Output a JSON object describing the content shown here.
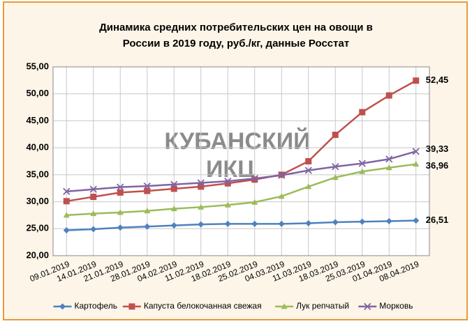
{
  "chart_data": {
    "type": "line",
    "title": [
      "Динамика средних потребительских цен на овощи в",
      "России в 2019 году, руб./кг, данные  Росстат"
    ],
    "watermark": [
      "КУБАНСКИЙ",
      "ИКЦ"
    ],
    "categories": [
      "09.01.2019",
      "14.01.2019",
      "21.01.2019",
      "28.01.2019",
      "04.02.2019",
      "11.02.2019",
      "18.02.2019",
      "25.02.2019",
      "04.03.2019",
      "11.03.2019",
      "18.03.2019",
      "25.03.2019",
      "01.04.2019",
      "08.04.2019"
    ],
    "series": [
      {
        "name": "Картофель",
        "color": "#4f81bd",
        "marker": "diamond",
        "values": [
          24.7,
          24.9,
          25.2,
          25.4,
          25.6,
          25.8,
          25.9,
          25.9,
          25.9,
          26.0,
          26.2,
          26.3,
          26.4,
          26.51
        ],
        "value_labels": [
          null,
          null,
          null,
          null,
          null,
          null,
          null,
          null,
          null,
          null,
          null,
          null,
          null,
          "26,51"
        ]
      },
      {
        "name": "Капуста белокочанная свежая",
        "color": "#c0504d",
        "marker": "square",
        "values": [
          30.1,
          30.9,
          31.7,
          32.0,
          32.4,
          32.8,
          33.4,
          34.1,
          35.0,
          37.5,
          42.4,
          46.6,
          49.7,
          52.45
        ],
        "value_labels": [
          null,
          null,
          null,
          null,
          null,
          null,
          null,
          null,
          null,
          null,
          null,
          null,
          null,
          "52,45"
        ]
      },
      {
        "name": "Лук репчатый",
        "color": "#9bbb59",
        "marker": "triangle",
        "values": [
          27.5,
          27.8,
          28.0,
          28.3,
          28.7,
          29.0,
          29.4,
          29.9,
          31.0,
          32.8,
          34.5,
          35.6,
          36.3,
          36.96
        ],
        "value_labels": [
          null,
          null,
          null,
          null,
          null,
          null,
          null,
          null,
          null,
          null,
          null,
          null,
          null,
          "36,96"
        ]
      },
      {
        "name": "Морковь",
        "color": "#8064a2",
        "marker": "x",
        "values": [
          31.9,
          32.3,
          32.7,
          32.9,
          33.2,
          33.5,
          33.8,
          34.3,
          34.9,
          35.8,
          36.5,
          37.1,
          37.9,
          39.33
        ],
        "value_labels": [
          null,
          null,
          null,
          null,
          null,
          null,
          null,
          null,
          null,
          null,
          null,
          null,
          null,
          "39,33"
        ]
      }
    ],
    "ylim": [
      20,
      55
    ],
    "yticks": [
      {
        "value": 20,
        "label": "20,00"
      },
      {
        "value": 25,
        "label": "25,00"
      },
      {
        "value": 30,
        "label": "30,00"
      },
      {
        "value": 35,
        "label": "35,00"
      },
      {
        "value": 40,
        "label": "40,00"
      },
      {
        "value": 45,
        "label": "45,00"
      },
      {
        "value": 50,
        "label": "50,00"
      },
      {
        "value": 55,
        "label": "55,00"
      }
    ],
    "grid": true,
    "legend": "bottom"
  }
}
